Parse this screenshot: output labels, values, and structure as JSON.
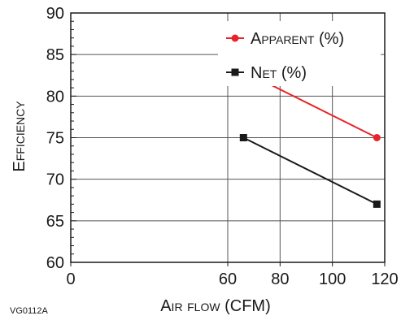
{
  "chart_data": {
    "type": "line",
    "xlabel": "Air flow (CFM)",
    "ylabel": "Efficiency",
    "xlim": [
      0,
      120
    ],
    "ylim": [
      60,
      90
    ],
    "xticks": [
      0,
      60,
      80,
      100,
      120
    ],
    "yticks": [
      60,
      65,
      70,
      75,
      80,
      85,
      90
    ],
    "grid": true,
    "legend_position": "top-right",
    "series": [
      {
        "name": "Apparent (%)",
        "color": "#e8242a",
        "marker": "circle",
        "x": [
          66,
          117
        ],
        "values": [
          83,
          75
        ]
      },
      {
        "name": "Net (%)",
        "color": "#1a1a1a",
        "marker": "square",
        "x": [
          66,
          117
        ],
        "values": [
          75,
          67
        ]
      }
    ]
  },
  "figure_code": "VG0112A"
}
